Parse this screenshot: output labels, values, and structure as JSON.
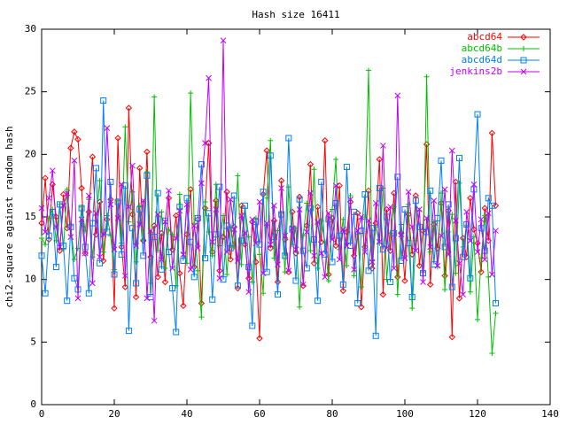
{
  "chart_data": {
    "type": "line",
    "title": "Hash size 16411",
    "ylabel": "chi2-square against random hash",
    "xlim": [
      0,
      140
    ],
    "ylim": [
      0,
      30
    ],
    "xticks": [
      0,
      20,
      40,
      60,
      80,
      100,
      120,
      140
    ],
    "yticks": [
      0,
      5,
      10,
      15,
      20,
      25,
      30
    ],
    "legend": "top-right",
    "x": [
      0,
      1,
      2,
      3,
      4,
      5,
      6,
      7,
      8,
      9,
      10,
      11,
      12,
      13,
      14,
      15,
      16,
      17,
      18,
      19,
      20,
      21,
      22,
      23,
      24,
      25,
      26,
      27,
      28,
      29,
      30,
      31,
      32,
      33,
      34,
      35,
      36,
      37,
      38,
      39,
      40,
      41,
      42,
      43,
      44,
      45,
      46,
      47,
      48,
      49,
      50,
      51,
      52,
      53,
      54,
      55,
      56,
      57,
      58,
      59,
      60,
      61,
      62,
      63,
      64,
      65,
      66,
      67,
      68,
      69,
      70,
      71,
      72,
      73,
      74,
      75,
      76,
      77,
      78,
      79,
      80,
      81,
      82,
      83,
      84,
      85,
      86,
      87,
      88,
      89,
      90,
      91,
      92,
      93,
      94,
      95,
      96,
      97,
      98,
      99,
      100,
      101,
      102,
      103,
      104,
      105,
      106,
      107,
      108,
      109,
      110,
      111,
      112,
      113,
      114,
      115,
      116,
      117,
      118,
      119,
      120,
      121,
      122,
      123,
      124,
      125
    ],
    "series": [
      {
        "name": "abcd64",
        "color": "#ff0000",
        "marker": "diamond",
        "values": [
          14.5,
          18.1,
          13.2,
          17.6,
          15.0,
          12.3,
          16.8,
          14.1,
          20.5,
          21.8,
          21.2,
          17.3,
          12.1,
          15.4,
          19.8,
          13.6,
          16.2,
          11.5,
          14.8,
          16.4,
          7.7,
          21.3,
          12.6,
          9.4,
          23.7,
          15.2,
          8.6,
          18.9,
          13.1,
          20.2,
          11.8,
          14.3,
          10.2,
          13.7,
          9.8,
          16.5,
          12.4,
          15.1,
          10.5,
          7.9,
          13.6,
          17.2,
          11.0,
          14.8,
          8.1,
          15.7,
          20.9,
          12.2,
          16.3,
          10.7,
          13.4,
          17.0,
          11.6,
          14.2,
          9.3,
          15.9,
          12.8,
          10.1,
          14.6,
          11.4,
          5.3,
          16.8,
          20.3,
          12.5,
          14.7,
          9.8,
          17.9,
          13.2,
          10.6,
          15.4,
          12.1,
          16.6,
          9.5,
          14.3,
          19.2,
          11.3,
          15.8,
          13.0,
          21.1,
          10.4,
          14.9,
          12.7,
          17.5,
          9.1,
          13.8,
          16.2,
          11.9,
          15.3,
          7.8,
          12.6,
          17.1,
          10.9,
          14.5,
          19.6,
          8.8,
          15.6,
          12.3,
          16.9,
          10.2,
          13.7,
          9.9,
          15.2,
          12.0,
          16.7,
          11.1,
          13.9,
          20.8,
          9.6,
          14.4,
          12.5,
          16.1,
          10.3,
          15.5,
          5.4,
          17.8,
          8.5,
          13.3,
          11.8,
          16.5,
          14.0,
          12.9,
          10.6,
          15.7,
          13.1,
          21.7,
          15.9
        ]
      },
      {
        "name": "abcd64b",
        "color": "#00c000",
        "marker": "plus",
        "values": [
          13.3,
          12.8,
          14.9,
          15.6,
          13.1,
          16.0,
          12.4,
          17.2,
          14.3,
          11.6,
          12.5,
          15.8,
          13.9,
          16.4,
          11.8,
          14.7,
          17.9,
          12.2,
          15.1,
          13.5,
          10.8,
          16.3,
          12.9,
          22.2,
          14.6,
          17.0,
          11.4,
          15.9,
          13.2,
          18.6,
          9.7,
          24.6,
          12.3,
          15.4,
          10.9,
          14.0,
          13.6,
          9.5,
          16.8,
          12.1,
          11.3,
          24.9,
          14.5,
          10.7,
          7.0,
          16.2,
          13.8,
          11.9,
          17.6,
          12.7,
          15.1,
          10.4,
          14.2,
          12.6,
          18.3,
          11.2,
          15.7,
          13.4,
          9.8,
          14.9,
          12.0,
          8.9,
          16.5,
          21.1,
          11.7,
          13.9,
          15.3,
          10.6,
          17.4,
          12.8,
          14.1,
          7.8,
          13.5,
          16.1,
          12.3,
          18.8,
          10.9,
          14.7,
          13.0,
          9.9,
          15.6,
          19.6,
          12.4,
          14.8,
          11.1,
          16.7,
          10.3,
          13.6,
          9.4,
          15.0,
          26.7,
          11.5,
          14.2,
          12.9,
          17.3,
          10.0,
          13.7,
          15.8,
          8.8,
          14.4,
          11.9,
          16.0,
          7.7,
          13.1,
          15.5,
          10.6,
          26.2,
          12.2,
          14.6,
          11.0,
          16.9,
          9.2,
          13.8,
          15.2,
          10.5,
          17.7,
          12.6,
          14.3,
          9.0,
          13.4,
          6.8,
          11.7,
          15.1,
          10.2,
          4.1,
          7.3
        ]
      },
      {
        "name": "abcd64d",
        "color": "#0080ff",
        "marker": "square",
        "values": [
          11.9,
          8.9,
          13.5,
          15.4,
          11.0,
          16.0,
          12.7,
          8.3,
          14.2,
          10.1,
          9.2,
          15.7,
          12.6,
          8.9,
          14.5,
          18.9,
          11.3,
          24.3,
          13.8,
          17.8,
          10.4,
          16.2,
          12.0,
          17.5,
          5.9,
          14.1,
          9.7,
          15.6,
          11.9,
          18.3,
          8.6,
          13.4,
          16.9,
          10.8,
          14.7,
          12.2,
          9.3,
          5.8,
          15.8,
          11.5,
          16.5,
          13.0,
          10.2,
          14.9,
          19.2,
          11.7,
          15.3,
          8.4,
          13.6,
          17.4,
          10.0,
          14.3,
          12.5,
          16.7,
          9.5,
          13.1,
          15.9,
          11.0,
          6.3,
          14.6,
          12.8,
          17.0,
          10.6,
          19.9,
          13.4,
          8.8,
          15.2,
          11.9,
          21.3,
          14.0,
          9.9,
          16.4,
          12.3,
          10.9,
          15.7,
          13.2,
          8.3,
          17.8,
          12.0,
          14.8,
          11.4,
          16.1,
          13.5,
          9.6,
          19.0,
          12.7,
          15.4,
          8.1,
          13.9,
          16.8,
          10.7,
          14.1,
          5.5,
          17.3,
          12.4,
          15.0,
          9.8,
          13.7,
          18.2,
          11.5,
          15.6,
          12.9,
          8.6,
          16.3,
          14.2,
          10.5,
          13.8,
          17.1,
          11.2,
          14.9,
          19.5,
          12.6,
          16.0,
          9.4,
          13.3,
          19.7,
          11.8,
          14.4,
          10.1,
          17.2,
          23.2,
          14.1,
          12.3,
          16.5,
          15.9,
          8.1
        ]
      },
      {
        "name": "jenkins2b",
        "color": "#c000ff",
        "marker": "cross",
        "values": [
          15.7,
          13.8,
          16.5,
          18.7,
          14.2,
          12.6,
          15.9,
          16.9,
          13.4,
          19.5,
          8.5,
          14.8,
          12.1,
          16.7,
          9.7,
          15.3,
          11.8,
          13.6,
          22.1,
          16.0,
          12.4,
          14.9,
          17.6,
          10.3,
          15.8,
          19.1,
          12.7,
          14.4,
          16.3,
          8.5,
          13.9,
          6.7,
          15.2,
          11.6,
          14.6,
          17.1,
          10.9,
          13.3,
          15.5,
          12.0,
          16.0,
          10.8,
          14.3,
          12.5,
          17.7,
          20.9,
          26.1,
          13.0,
          15.6,
          10.1,
          29.1,
          12.2,
          16.4,
          14.0,
          11.5,
          15.1,
          13.7,
          9.0,
          14.8,
          12.9,
          16.2,
          10.5,
          14.5,
          12.8,
          15.9,
          11.2,
          17.3,
          13.5,
          10.7,
          14.1,
          12.4,
          15.6,
          9.6,
          13.8,
          16.9,
          11.9,
          14.6,
          12.1,
          10.2,
          15.3,
          13.2,
          17.5,
          11.6,
          14.0,
          12.7,
          16.4,
          10.8,
          13.9,
          15.0,
          12.2,
          14.7,
          11.4,
          16.1,
          13.0,
          20.7,
          12.5,
          15.8,
          10.9,
          24.7,
          13.6,
          11.7,
          17.0,
          14.2,
          12.3,
          15.6,
          9.8,
          14.9,
          12.6,
          16.3,
          11.1,
          13.5,
          17.2,
          12.0,
          20.3,
          14.7,
          11.3,
          8.8,
          15.4,
          13.1,
          17.6,
          12.2,
          14.8,
          11.6,
          15.3,
          10.4,
          13.9
        ]
      }
    ]
  }
}
